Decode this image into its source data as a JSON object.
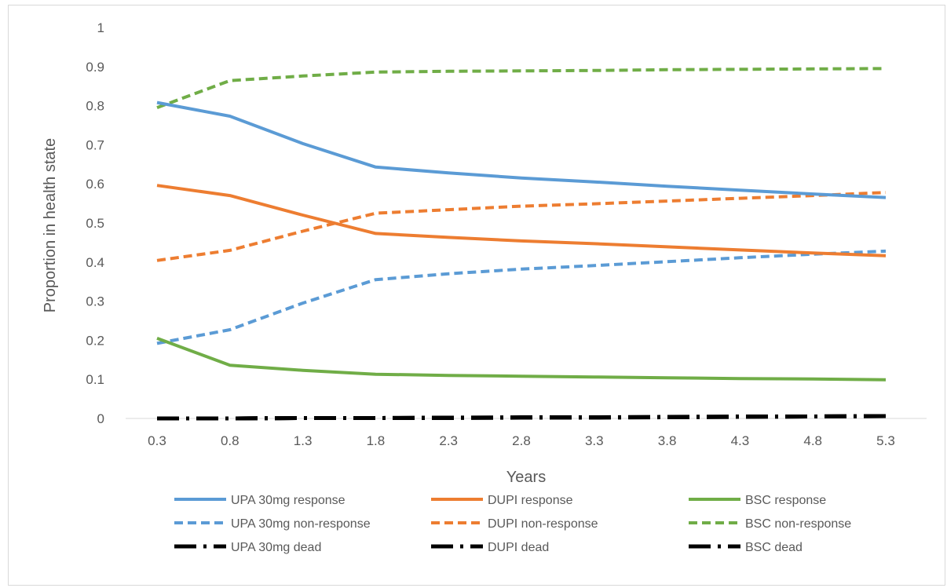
{
  "chart_data": {
    "type": "line",
    "title": "",
    "xlabel": "Years",
    "ylabel": "Proportion in health state",
    "x": [
      0.3,
      0.8,
      1.3,
      1.8,
      2.3,
      2.8,
      3.3,
      3.8,
      4.3,
      4.8,
      5.3
    ],
    "x_tick_labels": [
      "0.3",
      "0.8",
      "1.3",
      "1.8",
      "2.3",
      "2.8",
      "3.3",
      "3.8",
      "4.3",
      "4.8",
      "5.3"
    ],
    "y_tick_labels": [
      "0",
      "0.1",
      "0.2",
      "0.3",
      "0.4",
      "0.5",
      "0.6",
      "0.7",
      "0.8",
      "0.9",
      "1"
    ],
    "ylim": [
      0,
      1
    ],
    "grid": false,
    "legend_position": "bottom",
    "series": [
      {
        "name": "UPA 30mg response",
        "color": "#5b9bd5",
        "style": "solid",
        "values": [
          0.808,
          0.773,
          0.703,
          0.643,
          0.628,
          0.615,
          0.605,
          0.594,
          0.584,
          0.574,
          0.565
        ]
      },
      {
        "name": "DUPI response",
        "color": "#ed7d31",
        "style": "solid",
        "values": [
          0.596,
          0.57,
          0.52,
          0.473,
          0.463,
          0.454,
          0.447,
          0.439,
          0.431,
          0.423,
          0.416
        ]
      },
      {
        "name": "BSC response",
        "color": "#70ad47",
        "style": "solid",
        "values": [
          0.205,
          0.136,
          0.123,
          0.113,
          0.11,
          0.108,
          0.106,
          0.104,
          0.102,
          0.101,
          0.099
        ]
      },
      {
        "name": "UPA 30mg non-response",
        "color": "#5b9bd5",
        "style": "dashed",
        "values": [
          0.192,
          0.227,
          0.295,
          0.355,
          0.37,
          0.382,
          0.391,
          0.401,
          0.411,
          0.42,
          0.428
        ]
      },
      {
        "name": "DUPI non-response",
        "color": "#ed7d31",
        "style": "dashed",
        "values": [
          0.404,
          0.43,
          0.479,
          0.525,
          0.534,
          0.543,
          0.549,
          0.556,
          0.563,
          0.57,
          0.578
        ]
      },
      {
        "name": "BSC non-response",
        "color": "#70ad47",
        "style": "dashed",
        "values": [
          0.795,
          0.864,
          0.876,
          0.886,
          0.888,
          0.889,
          0.89,
          0.892,
          0.893,
          0.894,
          0.895
        ]
      },
      {
        "name": "UPA 30mg dead",
        "color": "#000000",
        "style": "dashdot",
        "values": [
          0.0,
          0.0,
          0.001,
          0.001,
          0.001,
          0.002,
          0.002,
          0.003,
          0.004,
          0.005,
          0.006
        ]
      },
      {
        "name": "DUPI dead",
        "color": "#000000",
        "style": "dashdot",
        "values": [
          0.0,
          0.0,
          0.001,
          0.001,
          0.002,
          0.002,
          0.003,
          0.003,
          0.004,
          0.005,
          0.006
        ]
      },
      {
        "name": "BSC dead",
        "color": "#000000",
        "style": "dashdot",
        "values": [
          0.0,
          0.0,
          0.001,
          0.001,
          0.002,
          0.003,
          0.003,
          0.004,
          0.005,
          0.005,
          0.006
        ]
      }
    ]
  }
}
